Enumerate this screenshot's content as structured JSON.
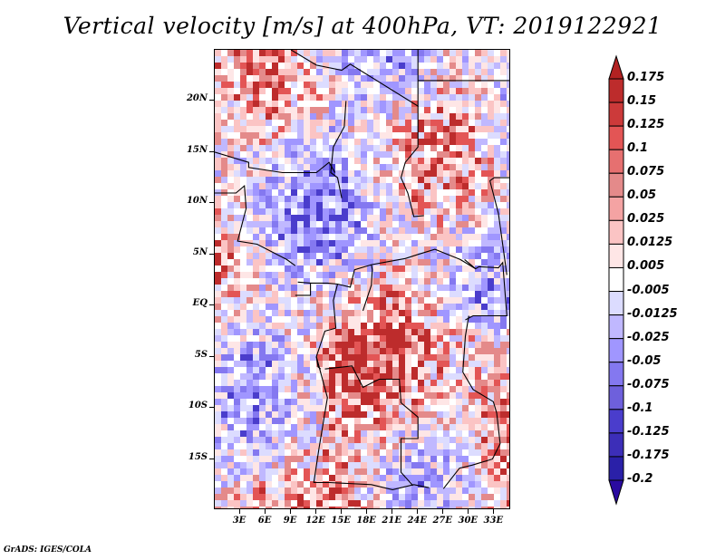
{
  "title": "Vertical velocity [m/s] at 400hPa, VT: 2019122921",
  "footer": "GrADS: IGES/COLA",
  "map": {
    "variable": "Vertical velocity",
    "units": "m/s",
    "level": "400hPa",
    "valid_time": "2019122921",
    "lat_labels": [
      "20N",
      "15N",
      "10N",
      "5N",
      "EQ",
      "5S",
      "10S",
      "15S"
    ],
    "lat_values": [
      20,
      15,
      10,
      5,
      0,
      -5,
      -10,
      -15
    ],
    "lon_labels": [
      "3E",
      "6E",
      "9E",
      "12E",
      "15E",
      "18E",
      "21E",
      "24E",
      "27E",
      "30E",
      "33E"
    ],
    "lon_values": [
      3,
      6,
      9,
      12,
      15,
      18,
      21,
      24,
      27,
      30,
      33
    ],
    "lon_range": [
      0,
      35
    ],
    "lat_range": [
      -20,
      25
    ]
  },
  "colorbar": {
    "labels": [
      "0.175",
      "0.15",
      "0.125",
      "0.1",
      "0.075",
      "0.05",
      "0.025",
      "0.0125",
      "0.005",
      "-0.005",
      "-0.0125",
      "-0.025",
      "-0.05",
      "-0.075",
      "-0.1",
      "-0.125",
      "-0.175",
      "-0.2"
    ],
    "colors": [
      "#b22222",
      "#bd2c2c",
      "#cc3a3a",
      "#e35555",
      "#e67070",
      "#e48a8a",
      "#f4a3a3",
      "#fbc4c4",
      "#fee6e6",
      "#ffffff",
      "#dcdcff",
      "#c0b8ff",
      "#a096ff",
      "#8478f0",
      "#6e60dc",
      "#4a3dcc",
      "#3c2eb8",
      "#2a20a8",
      "#24149c"
    ],
    "arrow_top_color": "#b22222",
    "arrow_bottom_color": "#2a0aa0"
  }
}
